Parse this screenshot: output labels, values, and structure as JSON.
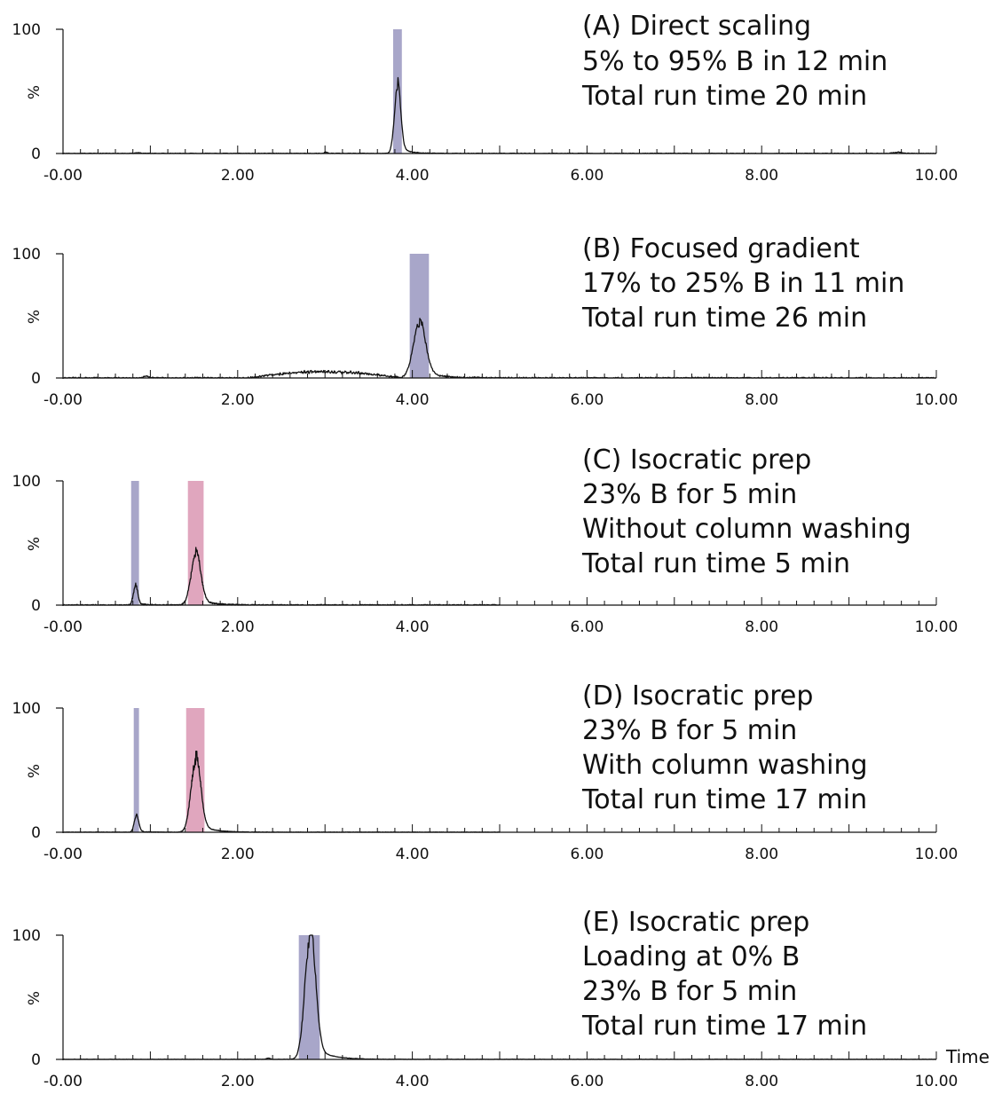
{
  "chart_data": [
    {
      "type": "line",
      "caption": [
        "(A) Direct scaling",
        "5% to 95% B in 12 min",
        "Total run time 20 min"
      ],
      "ylabel": "%",
      "yticks": [
        "100",
        "0"
      ],
      "xticks": [
        "-0.00",
        "2.00",
        "4.00",
        "6.00",
        "8.00",
        "10.00"
      ],
      "xlim": [
        0,
        10
      ],
      "ylim": [
        0,
        100
      ],
      "trace_end": 10,
      "noise": 0.6,
      "fractions": [
        {
          "x0": 3.78,
          "x1": 3.88,
          "color": "#a8a6c9"
        }
      ],
      "peaks": [
        {
          "x": 3.83,
          "h": 53,
          "w": 0.035
        },
        {
          "x": 3.01,
          "h": 1,
          "w": 0.02
        },
        {
          "x": 0.85,
          "h": 0.5,
          "w": 0.03
        },
        {
          "x": 9.55,
          "h": 1,
          "w": 0.05
        }
      ]
    },
    {
      "type": "line",
      "caption": [
        "(B) Focused gradient",
        "17% to 25% B in 11 min",
        "Total run time 26 min"
      ],
      "ylabel": "%",
      "yticks": [
        "100",
        "0"
      ],
      "xticks": [
        "-0.00",
        "2.00",
        "4.00",
        "6.00",
        "8.00",
        "10.00"
      ],
      "xlim": [
        0,
        10
      ],
      "ylim": [
        0,
        100
      ],
      "trace_end": 10,
      "noise": 1.2,
      "fractions": [
        {
          "x0": 3.97,
          "x1": 4.19,
          "color": "#a8a6c9"
        }
      ],
      "hump": {
        "x0": 2.1,
        "x1": 3.9,
        "h": 5
      },
      "peaks": [
        {
          "x": 4.08,
          "h": 43,
          "w": 0.07
        },
        {
          "x": 0.95,
          "h": 1.5,
          "w": 0.03
        }
      ]
    },
    {
      "type": "line",
      "caption": [
        "(C) Isocratic prep",
        "23% B for 5 min",
        "Without column washing",
        "Total run time 5 min"
      ],
      "ylabel": "%",
      "yticks": [
        "100",
        "0"
      ],
      "xticks": [
        "-0.00",
        "2.00",
        "4.00",
        "6.00",
        "8.00",
        "10.00"
      ],
      "xlim": [
        0,
        10
      ],
      "ylim": [
        0,
        100
      ],
      "trace_end": 5,
      "noise": 1.0,
      "fractions": [
        {
          "x0": 0.78,
          "x1": 0.87,
          "color": "#a8a6c9"
        },
        {
          "x0": 1.43,
          "x1": 1.61,
          "color": "#e0a6be"
        }
      ],
      "peaks": [
        {
          "x": 0.83,
          "h": 15,
          "w": 0.025
        },
        {
          "x": 1.52,
          "h": 40,
          "w": 0.055
        }
      ]
    },
    {
      "type": "line",
      "caption": [
        "(D) Isocratic prep",
        "23% B for 5 min",
        "With column washing",
        "Total run time 17 min"
      ],
      "ylabel": "%",
      "yticks": [
        "100",
        "0"
      ],
      "xticks": [
        "-0.00",
        "2.00",
        "4.00",
        "6.00",
        "8.00",
        "10.00"
      ],
      "xlim": [
        0,
        10
      ],
      "ylim": [
        0,
        100
      ],
      "trace_end": 5,
      "noise": 0.4,
      "fractions": [
        {
          "x0": 0.81,
          "x1": 0.87,
          "color": "#a8a6c9"
        },
        {
          "x0": 1.41,
          "x1": 1.62,
          "color": "#e0a6be"
        }
      ],
      "peaks": [
        {
          "x": 0.84,
          "h": 13,
          "w": 0.025
        },
        {
          "x": 1.52,
          "h": 57,
          "w": 0.055
        }
      ]
    },
    {
      "type": "line",
      "caption": [
        "(E) Isocratic prep",
        "Loading at 0% B",
        "23% B for 5 min",
        "Total run time 17 min"
      ],
      "ylabel": "%",
      "yticks": [
        "100",
        "0"
      ],
      "xticks": [
        "-0.00",
        "2.00",
        "4.00",
        "6.00",
        "8.00",
        "10.00"
      ],
      "xlabel": "Time",
      "xlim": [
        0,
        10
      ],
      "ylim": [
        0,
        100
      ],
      "trace_end": 10,
      "noise": 0.3,
      "fractions": [
        {
          "x0": 2.7,
          "x1": 2.94,
          "color": "#a8a6c9"
        }
      ],
      "peaks": [
        {
          "x": 2.83,
          "h": 98,
          "w": 0.06
        },
        {
          "x": 2.35,
          "h": 1,
          "w": 0.02
        }
      ]
    }
  ]
}
